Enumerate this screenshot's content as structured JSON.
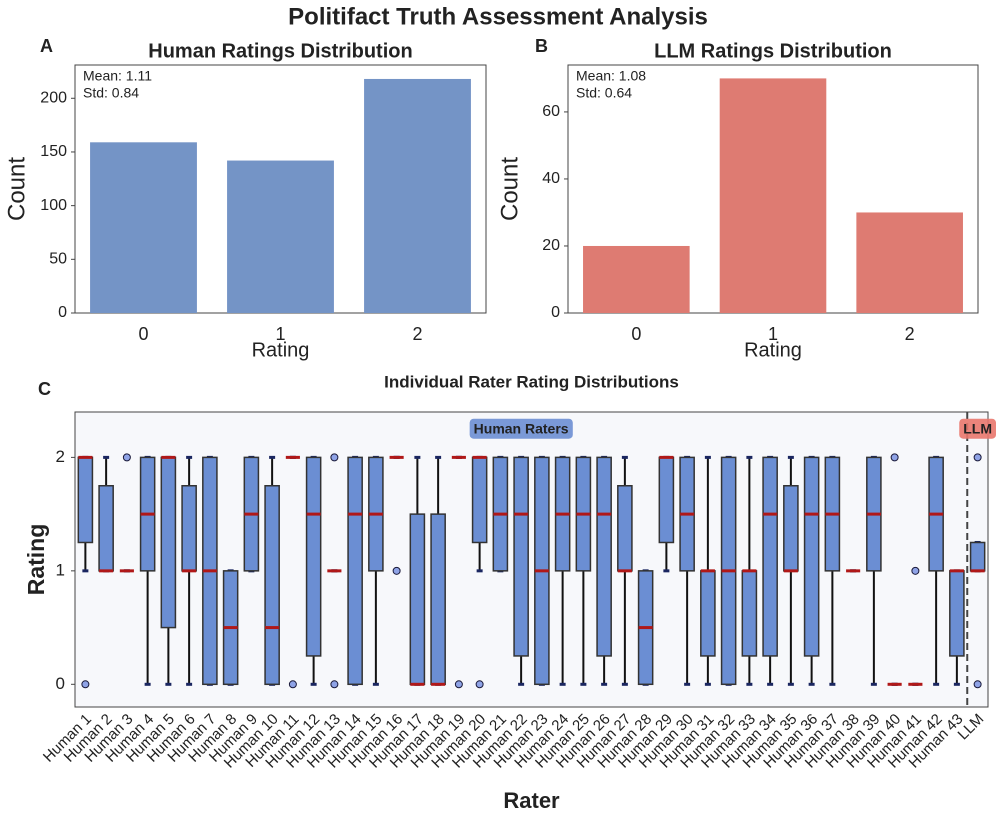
{
  "title": "Politifact Truth Assessment Analysis",
  "chart_data": [
    {
      "type": "bar",
      "panel": "A",
      "title": "Human Ratings Distribution",
      "categories": [
        "0",
        "1",
        "2"
      ],
      "values": [
        159,
        142,
        218
      ],
      "color": "#7494c6",
      "xlabel": "Rating",
      "ylabel": "Count",
      "ylim": [
        0,
        231
      ],
      "yticks": [
        0,
        50,
        100,
        150,
        200
      ],
      "annotation": [
        "Mean: 1.11",
        "Std: 0.84"
      ]
    },
    {
      "type": "bar",
      "panel": "B",
      "title": "LLM Ratings Distribution",
      "categories": [
        "0",
        "1",
        "2"
      ],
      "values": [
        20,
        70,
        30
      ],
      "color": "#de7b72",
      "xlabel": "Rating",
      "ylabel": "Count",
      "ylim": [
        0,
        74
      ],
      "yticks": [
        0,
        20,
        40,
        60
      ],
      "annotation": [
        "Mean: 1.08",
        "Std: 0.64"
      ]
    },
    {
      "type": "box",
      "panel": "C",
      "title": "Individual Rater Rating Distributions",
      "xlabel": "Rater",
      "ylabel": "Rating",
      "ylim": [
        -0.2,
        2.4
      ],
      "yticks": [
        0,
        1,
        2
      ],
      "box_color": "#6b8ed3",
      "median_color": "#b01818",
      "groups": [
        {
          "text": "Human Raters",
          "color": "#6b8ed3"
        },
        {
          "text": "LLM",
          "color": "#e9776d"
        }
      ],
      "categories": [
        "Human 1",
        "Human 2",
        "Human 3",
        "Human 4",
        "Human 5",
        "Human 6",
        "Human 7",
        "Human 8",
        "Human 9",
        "Human 10",
        "Human 11",
        "Human 12",
        "Human 13",
        "Human 14",
        "Human 15",
        "Human 16",
        "Human 17",
        "Human 18",
        "Human 19",
        "Human 20",
        "Human 21",
        "Human 22",
        "Human 23",
        "Human 24",
        "Human 25",
        "Human 26",
        "Human 27",
        "Human 28",
        "Human 29",
        "Human 30",
        "Human 31",
        "Human 32",
        "Human 33",
        "Human 34",
        "Human 35",
        "Human 36",
        "Human 37",
        "Human 38",
        "Human 39",
        "Human 40",
        "Human 41",
        "Human 42",
        "Human 43",
        "LLM"
      ],
      "boxes": [
        {
          "low": 1,
          "q1": 1.25,
          "median": 2,
          "q3": 2,
          "high": 2,
          "outliers": [
            0
          ]
        },
        {
          "low": 1,
          "q1": 1,
          "median": 1,
          "q3": 1.75,
          "high": 2,
          "outliers": []
        },
        {
          "low": 1,
          "q1": 1,
          "median": 1,
          "q3": 1,
          "high": 1,
          "outliers": [
            2
          ]
        },
        {
          "low": 0,
          "q1": 1,
          "median": 1.5,
          "q3": 2,
          "high": 2,
          "outliers": []
        },
        {
          "low": 0,
          "q1": 0.5,
          "median": 2,
          "q3": 2,
          "high": 2,
          "outliers": []
        },
        {
          "low": 0,
          "q1": 1,
          "median": 1,
          "q3": 1.75,
          "high": 2,
          "outliers": []
        },
        {
          "low": 0,
          "q1": 0,
          "median": 1,
          "q3": 2,
          "high": 2,
          "outliers": []
        },
        {
          "low": 0,
          "q1": 0,
          "median": 0.5,
          "q3": 1,
          "high": 1,
          "outliers": []
        },
        {
          "low": 1,
          "q1": 1,
          "median": 1.5,
          "q3": 2,
          "high": 2,
          "outliers": []
        },
        {
          "low": 0,
          "q1": 0,
          "median": 0.5,
          "q3": 1.75,
          "high": 2,
          "outliers": []
        },
        {
          "low": 2,
          "q1": 2,
          "median": 2,
          "q3": 2,
          "high": 2,
          "outliers": [
            0
          ]
        },
        {
          "low": 0,
          "q1": 0.25,
          "median": 1.5,
          "q3": 2,
          "high": 2,
          "outliers": []
        },
        {
          "low": 1,
          "q1": 1,
          "median": 1,
          "q3": 1,
          "high": 1,
          "outliers": [
            2,
            0
          ]
        },
        {
          "low": 0,
          "q1": 0,
          "median": 1.5,
          "q3": 2,
          "high": 2,
          "outliers": []
        },
        {
          "low": 0,
          "q1": 1,
          "median": 1.5,
          "q3": 2,
          "high": 2,
          "outliers": []
        },
        {
          "low": 2,
          "q1": 2,
          "median": 2,
          "q3": 2,
          "high": 2,
          "outliers": [
            1
          ]
        },
        {
          "low": 0,
          "q1": 0,
          "median": 0,
          "q3": 1.5,
          "high": 2,
          "outliers": []
        },
        {
          "low": 0,
          "q1": 0,
          "median": 0,
          "q3": 1.5,
          "high": 2,
          "outliers": []
        },
        {
          "low": 2,
          "q1": 2,
          "median": 2,
          "q3": 2,
          "high": 2,
          "outliers": [
            0
          ]
        },
        {
          "low": 1,
          "q1": 1.25,
          "median": 2,
          "q3": 2,
          "high": 2,
          "outliers": [
            0
          ]
        },
        {
          "low": 1,
          "q1": 1,
          "median": 1.5,
          "q3": 2,
          "high": 2,
          "outliers": []
        },
        {
          "low": 0,
          "q1": 0.25,
          "median": 1.5,
          "q3": 2,
          "high": 2,
          "outliers": []
        },
        {
          "low": 0,
          "q1": 0,
          "median": 1,
          "q3": 2,
          "high": 2,
          "outliers": []
        },
        {
          "low": 0,
          "q1": 1,
          "median": 1.5,
          "q3": 2,
          "high": 2,
          "outliers": []
        },
        {
          "low": 0,
          "q1": 1,
          "median": 1.5,
          "q3": 2,
          "high": 2,
          "outliers": []
        },
        {
          "low": 0,
          "q1": 0.25,
          "median": 1.5,
          "q3": 2,
          "high": 2,
          "outliers": []
        },
        {
          "low": 0,
          "q1": 1,
          "median": 1,
          "q3": 1.75,
          "high": 2,
          "outliers": []
        },
        {
          "low": 0,
          "q1": 0,
          "median": 0.5,
          "q3": 1,
          "high": 1,
          "outliers": []
        },
        {
          "low": 1,
          "q1": 1.25,
          "median": 2,
          "q3": 2,
          "high": 2,
          "outliers": []
        },
        {
          "low": 0,
          "q1": 1,
          "median": 1.5,
          "q3": 2,
          "high": 2,
          "outliers": []
        },
        {
          "low": 0,
          "q1": 0.25,
          "median": 1,
          "q3": 1,
          "high": 2,
          "outliers": []
        },
        {
          "low": 0,
          "q1": 0,
          "median": 1,
          "q3": 2,
          "high": 2,
          "outliers": []
        },
        {
          "low": 0,
          "q1": 0.25,
          "median": 1,
          "q3": 1,
          "high": 2,
          "outliers": []
        },
        {
          "low": 0,
          "q1": 0.25,
          "median": 1.5,
          "q3": 2,
          "high": 2,
          "outliers": []
        },
        {
          "low": 0,
          "q1": 1,
          "median": 1,
          "q3": 1.75,
          "high": 2,
          "outliers": []
        },
        {
          "low": 0,
          "q1": 0.25,
          "median": 1.5,
          "q3": 2,
          "high": 2,
          "outliers": []
        },
        {
          "low": 0,
          "q1": 1,
          "median": 1.5,
          "q3": 2,
          "high": 2,
          "outliers": []
        },
        {
          "low": 1,
          "q1": 1,
          "median": 1,
          "q3": 1,
          "high": 1,
          "outliers": []
        },
        {
          "low": 0,
          "q1": 1,
          "median": 1.5,
          "q3": 2,
          "high": 2,
          "outliers": []
        },
        {
          "low": 0,
          "q1": 0,
          "median": 0,
          "q3": 0,
          "high": 0,
          "outliers": [
            2
          ]
        },
        {
          "low": 0,
          "q1": 0,
          "median": 0,
          "q3": 0,
          "high": 0,
          "outliers": [
            1
          ]
        },
        {
          "low": 0,
          "q1": 1,
          "median": 1.5,
          "q3": 2,
          "high": 2,
          "outliers": []
        },
        {
          "low": 0,
          "q1": 0.25,
          "median": 1,
          "q3": 1,
          "high": 1,
          "outliers": []
        },
        {
          "low": 1,
          "q1": 1,
          "median": 1,
          "q3": 1.25,
          "high": 1.25,
          "outliers": [
            2,
            0
          ]
        }
      ]
    }
  ]
}
